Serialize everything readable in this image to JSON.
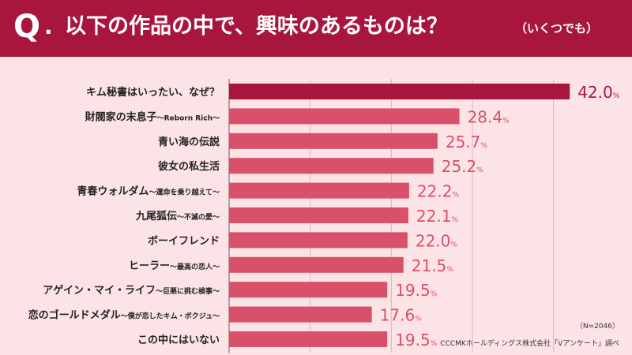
{
  "header": {
    "q_mark": "Q",
    "q_dot": ".",
    "title": "以下の作品の中で、興味のあるものは？",
    "subtitle": "（いくつでも）"
  },
  "footer": {
    "sample_size": "（N=2046）",
    "source": "CCCMKホールディングス株式会社「Vアンケート」調べ"
  },
  "colors": {
    "header_bg": "#a8163e",
    "background": "#fce3e6",
    "top_bar": "#a8163e",
    "bar": "#d9506b",
    "label_top": "#a8163e",
    "label": "#d9506b"
  },
  "chart_data": {
    "type": "bar",
    "orientation": "horizontal",
    "unit": "%",
    "xlim": [
      0,
      45
    ],
    "grid": true,
    "categories": [
      {
        "main": "キム秘書はいったい、なぜ？",
        "sub": ""
      },
      {
        "main": "財閥家の末息子",
        "sub": "～Reborn Rich～"
      },
      {
        "main": "青い海の伝説",
        "sub": ""
      },
      {
        "main": "彼女の私生活",
        "sub": ""
      },
      {
        "main": "青春ウォルダム",
        "sub": "～運命を乗り越えて～"
      },
      {
        "main": "九尾狐伝",
        "sub": "～不滅の愛～"
      },
      {
        "main": "ボーイフレンド",
        "sub": ""
      },
      {
        "main": "ヒーラー",
        "sub": "～最高の恋人～"
      },
      {
        "main": "アゲイン・マイ・ライフ",
        "sub": "～巨悪に挑む検事～"
      },
      {
        "main": "恋のゴールドメダル",
        "sub": "～僕が恋したキム・ボクジュ～"
      },
      {
        "main": "この中にはいない",
        "sub": ""
      }
    ],
    "values": [
      42.0,
      28.4,
      25.7,
      25.2,
      22.2,
      22.1,
      22.0,
      21.5,
      19.5,
      17.6,
      19.5
    ],
    "value_labels": [
      "42.0",
      "28.4",
      "25.7",
      "25.2",
      "22.2",
      "22.1",
      "22.0",
      "21.5",
      "19.5",
      "17.6",
      "19.5"
    ]
  }
}
